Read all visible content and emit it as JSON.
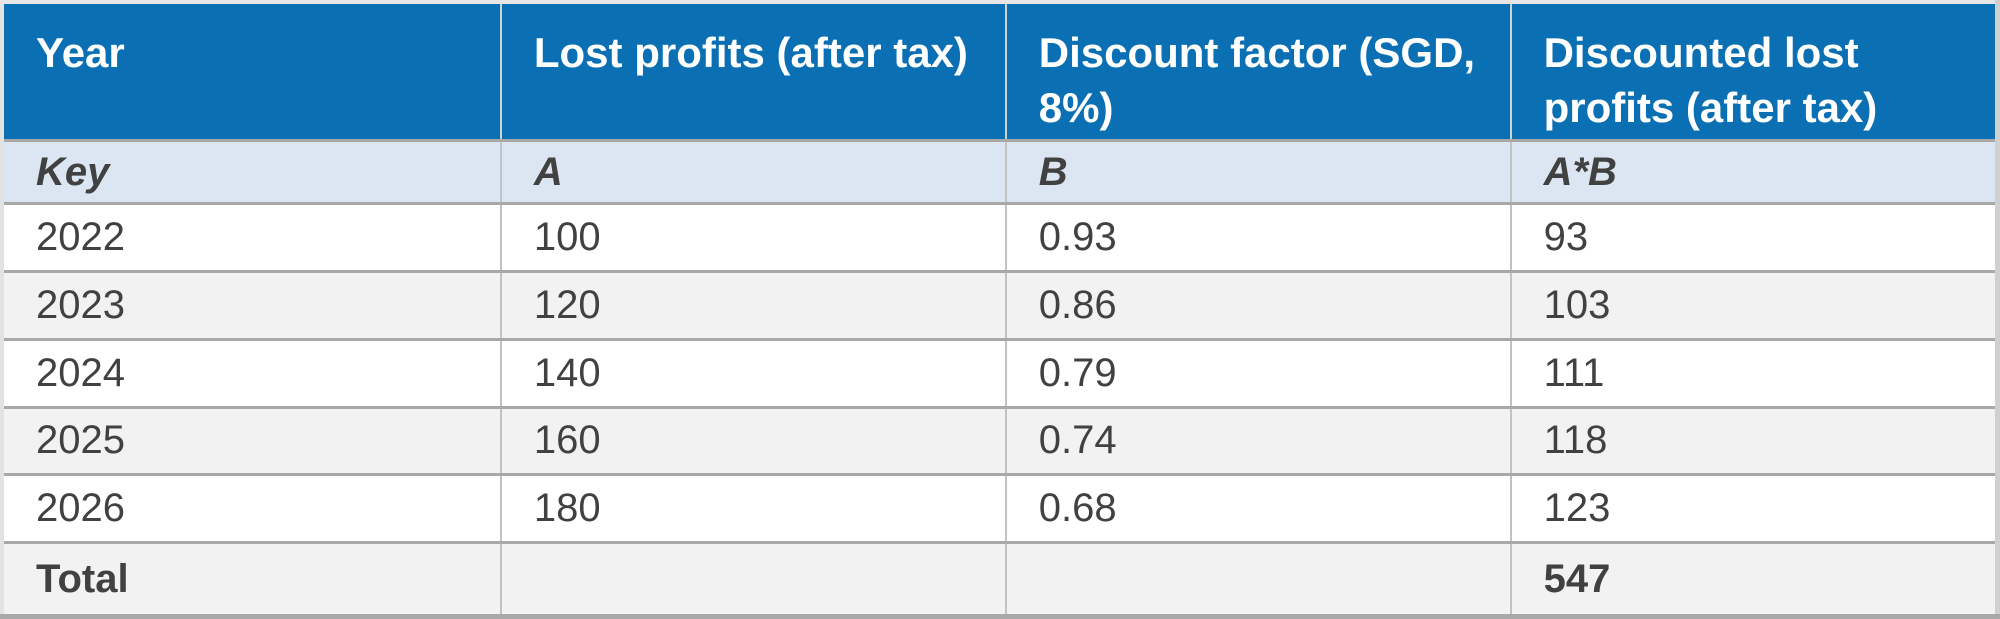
{
  "colors": {
    "header_bg": "#0b6fb3",
    "header_text": "#ffffff",
    "key_bg": "#dce6f3",
    "row_bg": "#ffffff",
    "alt_row_bg": "#f2f2f2",
    "body_text": "#414141",
    "row_border": "#a8a8a8",
    "col_border": "#c2c2c2"
  },
  "table": {
    "headers": [
      "Year",
      "Lost profits (after tax)",
      "Discount factor (SGD, 8%)",
      "Discounted lost profits (after tax)"
    ],
    "key_row": {
      "label": "Key",
      "a": "A",
      "b": "B",
      "ab": "A*B"
    },
    "rows": [
      {
        "year": "2022",
        "lost_profits": "100",
        "discount_factor": "0.93",
        "discounted_lost_profits": "93"
      },
      {
        "year": "2023",
        "lost_profits": "120",
        "discount_factor": "0.86",
        "discounted_lost_profits": "103"
      },
      {
        "year": "2024",
        "lost_profits": "140",
        "discount_factor": "0.79",
        "discounted_lost_profits": "111"
      },
      {
        "year": "2025",
        "lost_profits": "160",
        "discount_factor": "0.74",
        "discounted_lost_profits": "118"
      },
      {
        "year": "2026",
        "lost_profits": "180",
        "discount_factor": "0.68",
        "discounted_lost_profits": "123"
      }
    ],
    "total_row": {
      "label": "Total",
      "lost_profits": "",
      "discount_factor": "",
      "discounted_lost_profits": "547"
    }
  }
}
